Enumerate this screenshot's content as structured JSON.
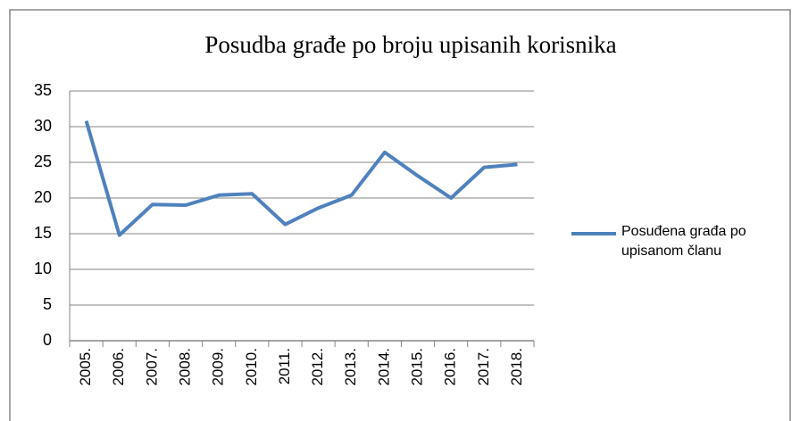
{
  "chart_data": {
    "type": "line",
    "title": "Posudba građe po broju upisanih korisnika",
    "categories": [
      "2005.",
      "2006.",
      "2007.",
      "2008.",
      "2009.",
      "2010.",
      "2011.",
      "2012.",
      "2013.",
      "2014.",
      "2015.",
      "2016.",
      "2017.",
      "2018."
    ],
    "series": [
      {
        "name": "Posuđena građa po upisanom članu",
        "color": "#4f81bd",
        "values": [
          30.8,
          14.8,
          19.1,
          19.0,
          20.4,
          20.6,
          16.3,
          18.6,
          20.4,
          26.4,
          23.1,
          20.0,
          24.3,
          24.7
        ]
      }
    ],
    "ylim": [
      0,
      35
    ],
    "yticks": [
      0,
      5,
      10,
      15,
      20,
      25,
      30,
      35
    ],
    "grid": true,
    "legend": "right"
  }
}
